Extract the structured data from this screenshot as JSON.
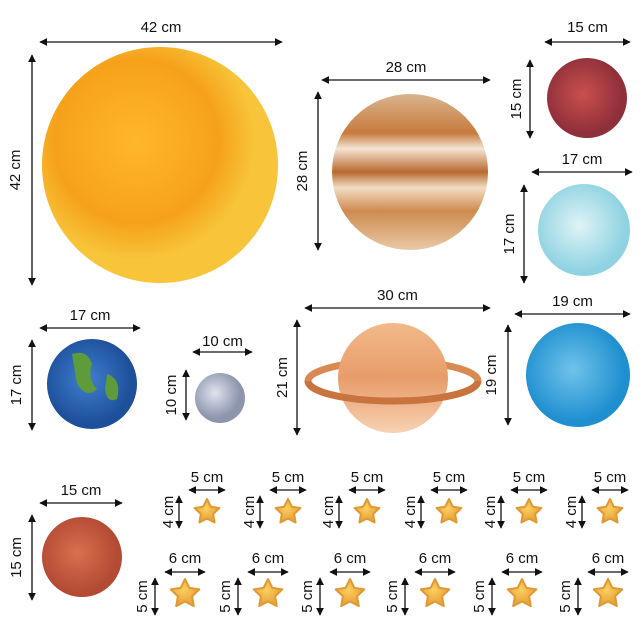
{
  "items": [
    {
      "name": "sun",
      "width": "42 cm",
      "height": "42 cm"
    },
    {
      "name": "jupiter",
      "width": "28 cm",
      "height": "28 cm"
    },
    {
      "name": "mars",
      "width": "15 cm",
      "height": "15 cm"
    },
    {
      "name": "uranus",
      "width": "17 cm",
      "height": "17 cm"
    },
    {
      "name": "earth",
      "width": "17 cm",
      "height": "17 cm"
    },
    {
      "name": "mercury",
      "width": "10 cm",
      "height": "10 cm"
    },
    {
      "name": "saturn",
      "width": "30 cm",
      "height": "21 cm"
    },
    {
      "name": "neptune",
      "width": "19 cm",
      "height": "19 cm"
    },
    {
      "name": "mars",
      "width": "15 cm",
      "height": "15 cm"
    }
  ],
  "stars": {
    "small": [
      {
        "width": "5 cm",
        "height": "4 cm"
      },
      {
        "width": "5 cm",
        "height": "4 cm"
      },
      {
        "width": "5 cm",
        "height": "4 cm"
      },
      {
        "width": "5 cm",
        "height": "4 cm"
      },
      {
        "width": "5 cm",
        "height": "4 cm"
      },
      {
        "width": "5 cm",
        "height": "4 cm"
      }
    ],
    "large": [
      {
        "width": "6 cm",
        "height": "5 cm"
      },
      {
        "width": "6 cm",
        "height": "5 cm"
      },
      {
        "width": "6 cm",
        "height": "5 cm"
      },
      {
        "width": "6 cm",
        "height": "5 cm"
      },
      {
        "width": "6 cm",
        "height": "5 cm"
      },
      {
        "width": "6 cm",
        "height": "5 cm"
      }
    ]
  }
}
